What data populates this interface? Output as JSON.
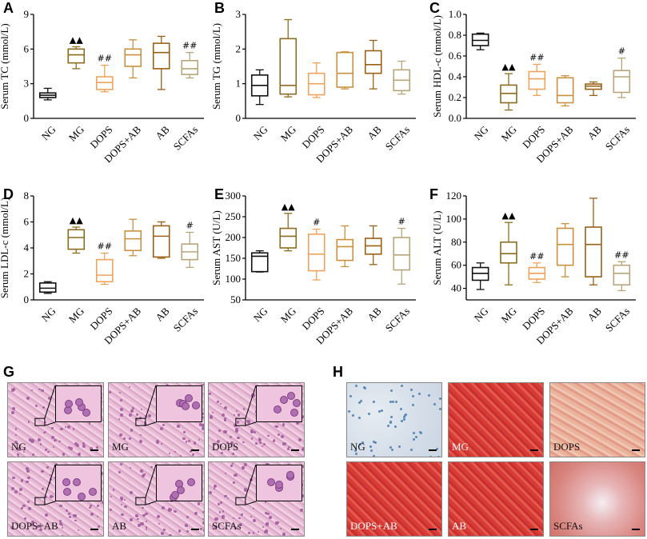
{
  "panel_letters": [
    "A",
    "B",
    "C",
    "D",
    "E",
    "F",
    "G",
    "H"
  ],
  "chart_data": [
    {
      "id": "A",
      "type": "box",
      "ylabel": "Serum TC (mmol/L)",
      "ylim": [
        0,
        9
      ],
      "yticks": [
        0,
        3,
        6,
        9
      ],
      "categories": [
        "NG",
        "MG",
        "DOPS",
        "DOPS+AB",
        "AB",
        "SCFAs"
      ],
      "boxes": [
        {
          "min": 1.6,
          "q1": 1.8,
          "median": 2.0,
          "q3": 2.2,
          "max": 2.6
        },
        {
          "min": 4.3,
          "q1": 4.8,
          "median": 5.5,
          "q3": 6.0,
          "max": 6.2
        },
        {
          "min": 2.3,
          "q1": 2.5,
          "median": 3.1,
          "q3": 3.6,
          "max": 4.6
        },
        {
          "min": 3.5,
          "q1": 4.5,
          "median": 5.5,
          "q3": 6.0,
          "max": 6.8
        },
        {
          "min": 2.5,
          "q1": 4.3,
          "median": 5.7,
          "q3": 6.5,
          "max": 7.1
        },
        {
          "min": 3.5,
          "q1": 3.8,
          "median": 4.3,
          "q3": 5.0,
          "max": 5.7
        }
      ],
      "annotations": [
        "",
        "▲▲",
        "##",
        "",
        "",
        "##"
      ]
    },
    {
      "id": "B",
      "type": "box",
      "ylabel": "Serum TG (mmol/L)",
      "ylim": [
        0,
        3
      ],
      "yticks": [
        0,
        1,
        2,
        3
      ],
      "categories": [
        "NG",
        "MG",
        "DOPS",
        "DOPS+AB",
        "AB",
        "SCFAs"
      ],
      "boxes": [
        {
          "min": 0.4,
          "q1": 0.65,
          "median": 0.95,
          "q3": 1.25,
          "max": 1.4
        },
        {
          "min": 0.62,
          "q1": 0.7,
          "median": 0.95,
          "q3": 2.3,
          "max": 2.85
        },
        {
          "min": 0.6,
          "q1": 0.68,
          "median": 1.0,
          "q3": 1.3,
          "max": 1.6
        },
        {
          "min": 0.85,
          "q1": 0.9,
          "median": 1.3,
          "q3": 1.9,
          "max": 1.92
        },
        {
          "min": 0.85,
          "q1": 1.3,
          "median": 1.55,
          "q3": 1.95,
          "max": 2.25
        },
        {
          "min": 0.7,
          "q1": 0.8,
          "median": 1.1,
          "q3": 1.4,
          "max": 1.65
        }
      ],
      "annotations": [
        "",
        "",
        "",
        "",
        "",
        ""
      ]
    },
    {
      "id": "C",
      "type": "box",
      "ylabel": "Serum HDL-c (mmol/L)",
      "ylim": [
        0,
        1.0
      ],
      "yticks": [
        0.0,
        0.2,
        0.4,
        0.6,
        0.8,
        1.0
      ],
      "categories": [
        "NG",
        "MG",
        "DOPS",
        "DOPS+AB",
        "AB",
        "SCFAs"
      ],
      "boxes": [
        {
          "min": 0.66,
          "q1": 0.7,
          "median": 0.75,
          "q3": 0.81,
          "max": 0.82
        },
        {
          "min": 0.08,
          "q1": 0.15,
          "median": 0.24,
          "q3": 0.32,
          "max": 0.43
        },
        {
          "min": 0.22,
          "q1": 0.28,
          "median": 0.38,
          "q3": 0.45,
          "max": 0.52
        },
        {
          "min": 0.12,
          "q1": 0.15,
          "median": 0.22,
          "q3": 0.39,
          "max": 0.41
        },
        {
          "min": 0.22,
          "q1": 0.28,
          "median": 0.31,
          "q3": 0.33,
          "max": 0.35
        },
        {
          "min": 0.2,
          "q1": 0.25,
          "median": 0.4,
          "q3": 0.46,
          "max": 0.58
        }
      ],
      "annotations": [
        "",
        "▲▲",
        "##",
        "",
        "",
        "#"
      ]
    },
    {
      "id": "D",
      "type": "box",
      "ylabel": "Serum LDL-c (mmol/L)",
      "ylim": [
        0,
        8
      ],
      "yticks": [
        0,
        2,
        4,
        6,
        8
      ],
      "categories": [
        "NG",
        "MG",
        "DOPS",
        "DOPS+AB",
        "AB",
        "SCFAs"
      ],
      "boxes": [
        {
          "min": 0.5,
          "q1": 0.6,
          "median": 0.9,
          "q3": 1.3,
          "max": 1.4
        },
        {
          "min": 3.6,
          "q1": 3.9,
          "median": 4.8,
          "q3": 5.4,
          "max": 5.6
        },
        {
          "min": 1.2,
          "q1": 1.4,
          "median": 1.9,
          "q3": 3.1,
          "max": 3.6
        },
        {
          "min": 3.4,
          "q1": 3.8,
          "median": 4.7,
          "q3": 5.3,
          "max": 6.2
        },
        {
          "min": 3.2,
          "q1": 3.3,
          "median": 4.9,
          "q3": 5.7,
          "max": 6.0
        },
        {
          "min": 2.5,
          "q1": 3.1,
          "median": 3.7,
          "q3": 4.3,
          "max": 5.2
        }
      ],
      "annotations": [
        "",
        "▲▲",
        "##",
        "",
        "",
        "#"
      ]
    },
    {
      "id": "E",
      "type": "box",
      "ylabel": "Serum AST (U/L)",
      "ylim": [
        50,
        300
      ],
      "yticks": [
        50,
        100,
        150,
        200,
        250,
        300
      ],
      "categories": [
        "NG",
        "MG",
        "DOPS",
        "DOPS+AB",
        "AB",
        "SCFAs"
      ],
      "boxes": [
        {
          "min": 117,
          "q1": 118,
          "median": 155,
          "q3": 163,
          "max": 168
        },
        {
          "min": 168,
          "q1": 175,
          "median": 203,
          "q3": 222,
          "max": 258
        },
        {
          "min": 98,
          "q1": 120,
          "median": 160,
          "q3": 208,
          "max": 220
        },
        {
          "min": 130,
          "q1": 145,
          "median": 178,
          "q3": 195,
          "max": 228
        },
        {
          "min": 135,
          "q1": 160,
          "median": 180,
          "q3": 198,
          "max": 228
        },
        {
          "min": 88,
          "q1": 122,
          "median": 158,
          "q3": 200,
          "max": 222
        }
      ],
      "annotations": [
        "",
        "▲▲",
        "#",
        "",
        "",
        "#"
      ]
    },
    {
      "id": "F",
      "type": "box",
      "ylabel": "Serum ALT (U/L)",
      "ylim": [
        30,
        120
      ],
      "yticks": [
        40,
        60,
        80,
        100,
        120
      ],
      "categories": [
        "NG",
        "MG",
        "DOPS",
        "DOPS+AB",
        "AB",
        "SCFAs"
      ],
      "boxes": [
        {
          "min": 39,
          "q1": 47,
          "median": 53,
          "q3": 58,
          "max": 62
        },
        {
          "min": 43,
          "q1": 62,
          "median": 70,
          "q3": 80,
          "max": 97
        },
        {
          "min": 45,
          "q1": 48,
          "median": 53,
          "q3": 58,
          "max": 62
        },
        {
          "min": 50,
          "q1": 60,
          "median": 78,
          "q3": 92,
          "max": 96
        },
        {
          "min": 43,
          "q1": 50,
          "median": 78,
          "q3": 93,
          "max": 118
        },
        {
          "min": 38,
          "q1": 43,
          "median": 53,
          "q3": 60,
          "max": 63
        }
      ],
      "annotations": [
        "",
        "▲▲",
        "##",
        "",
        "",
        "##"
      ]
    }
  ],
  "groups": [
    "NG",
    "MG",
    "DOPS",
    "DOPS+AB",
    "AB",
    "SCFAs"
  ],
  "colors": {
    "NG": "#111111",
    "MG": "#8a6d1e",
    "DOPS": "#f0a35a",
    "DOPS+AB": "#c8913f",
    "AB": "#9a6116",
    "SCFAs": "#b8a57a",
    "he_bg": "#e7b7d2",
    "he_cell": "#c684b8",
    "oro_ng_bg": "#dbe3ec",
    "oro_red": "#d9443e",
    "oro_pale": "#e9a68e"
  },
  "histology_G": [
    {
      "label": "NG"
    },
    {
      "label": "MG"
    },
    {
      "label": "DOPS"
    },
    {
      "label": "DOPS+AB"
    },
    {
      "label": "AB"
    },
    {
      "label": "SCFAs"
    }
  ],
  "histology_H": [
    {
      "label": "NG"
    },
    {
      "label": "MG"
    },
    {
      "label": "DOPS"
    },
    {
      "label": "DOPS+AB"
    },
    {
      "label": "AB"
    },
    {
      "label": "SCFAs"
    }
  ]
}
